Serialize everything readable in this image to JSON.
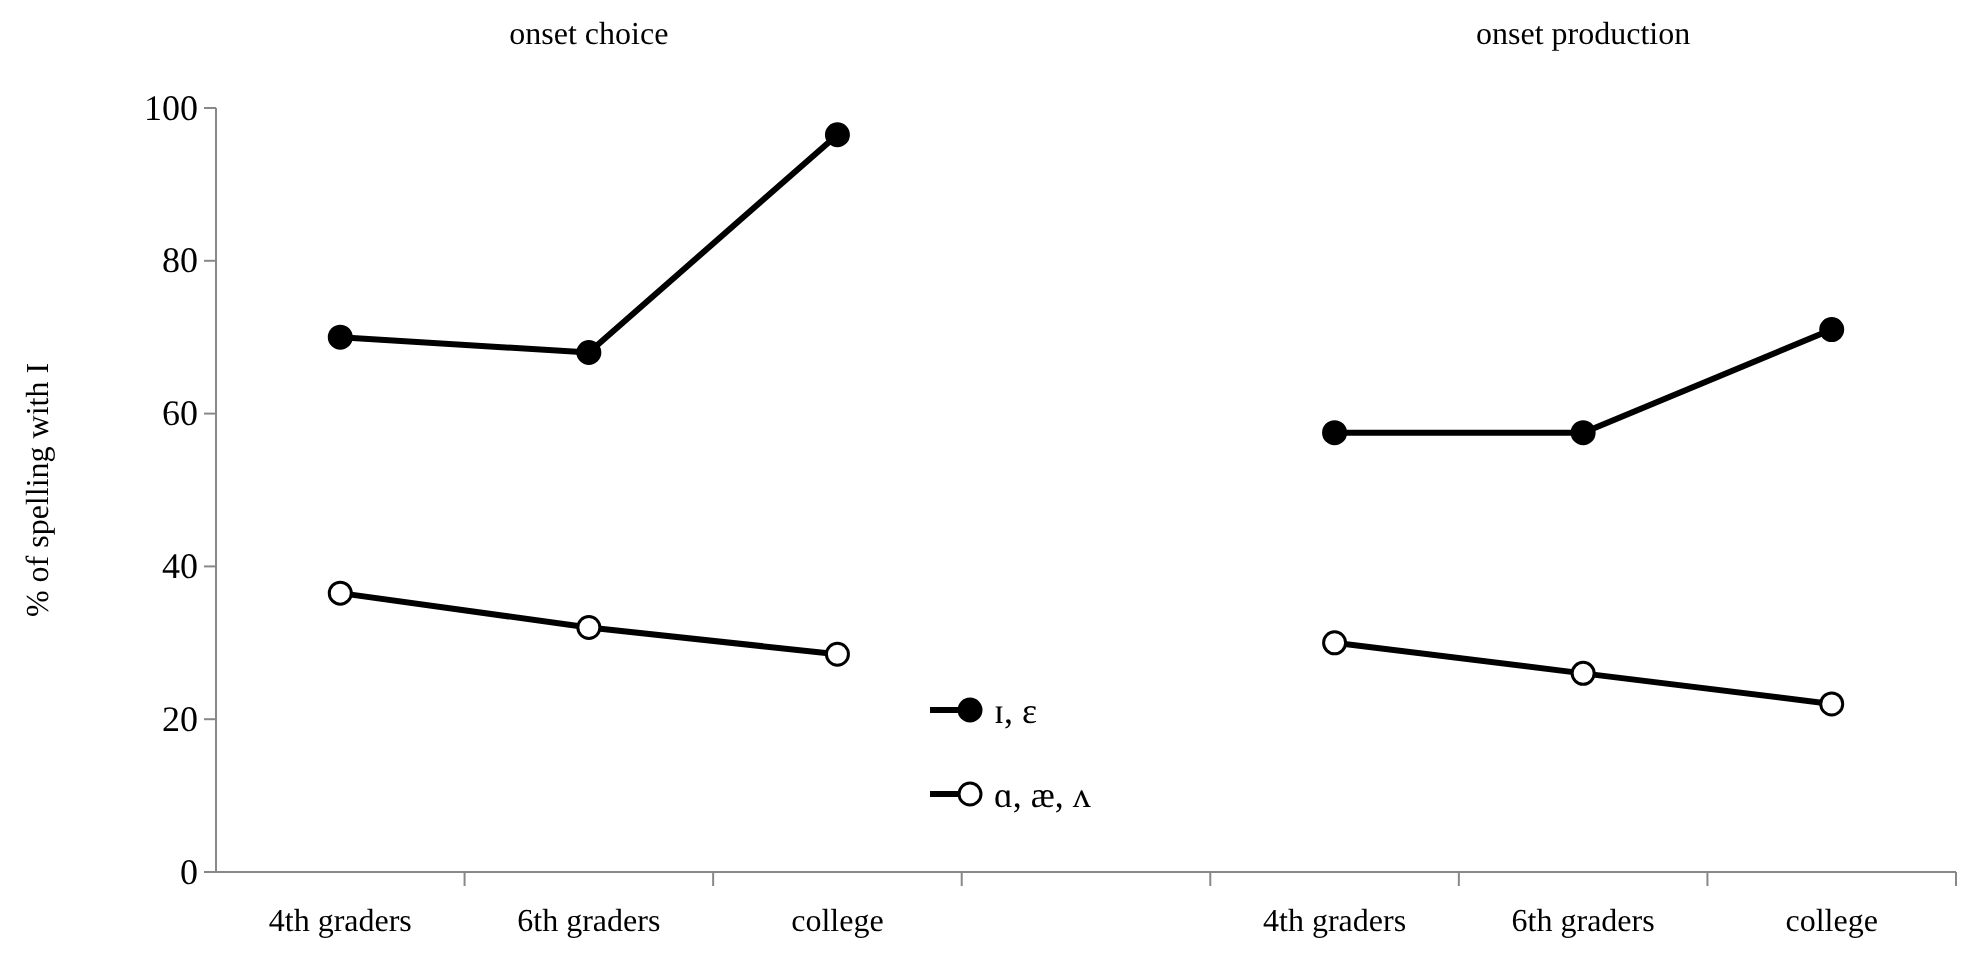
{
  "chart_data": {
    "type": "line",
    "ylabel": "% of spelling with I",
    "annotations": [
      "onset choice",
      "onset production"
    ],
    "categories": [
      "4th graders",
      "6th graders",
      "college",
      null,
      "4th graders",
      "6th graders",
      "college"
    ],
    "series": [
      {
        "name": "ɪ, ɛ",
        "color": "#000000",
        "marker": "circle",
        "values": [
          70,
          68,
          96.5,
          null,
          57.5,
          57.5,
          71
        ]
      },
      {
        "name": "ɑ, æ, ʌ",
        "color": "#000000",
        "marker": "open-circle",
        "values": [
          36.5,
          32,
          28.5,
          null,
          30,
          26,
          22
        ]
      }
    ],
    "ylim": [
      0,
      100
    ],
    "yticks": [
      0,
      20,
      40,
      60,
      80,
      100
    ],
    "grid": false,
    "legend": "bottom"
  }
}
